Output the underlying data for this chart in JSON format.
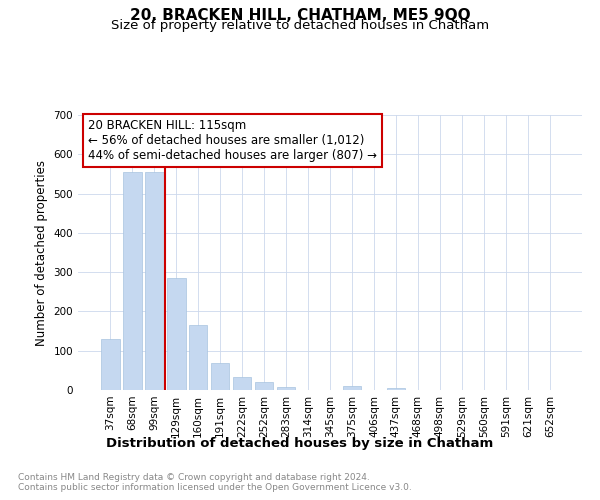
{
  "title": "20, BRACKEN HILL, CHATHAM, ME5 9QQ",
  "subtitle": "Size of property relative to detached houses in Chatham",
  "xlabel": "Distribution of detached houses by size in Chatham",
  "ylabel": "Number of detached properties",
  "categories": [
    "37sqm",
    "68sqm",
    "99sqm",
    "129sqm",
    "160sqm",
    "191sqm",
    "222sqm",
    "252sqm",
    "283sqm",
    "314sqm",
    "345sqm",
    "375sqm",
    "406sqm",
    "437sqm",
    "468sqm",
    "498sqm",
    "529sqm",
    "560sqm",
    "591sqm",
    "621sqm",
    "652sqm"
  ],
  "values": [
    130,
    555,
    555,
    285,
    165,
    70,
    33,
    20,
    8,
    0,
    0,
    10,
    0,
    5,
    0,
    0,
    0,
    0,
    0,
    0,
    0
  ],
  "bar_color": "#c5d8f0",
  "bar_edge_color": "#a8c4e0",
  "annotation_box_text": "20 BRACKEN HILL: 115sqm\n← 56% of detached houses are smaller (1,012)\n44% of semi-detached houses are larger (807) →",
  "annotation_box_color": "white",
  "annotation_box_edge_color": "#cc0000",
  "vline_color": "#cc0000",
  "vline_x": 2.5,
  "ylim": [
    0,
    700
  ],
  "yticks": [
    0,
    100,
    200,
    300,
    400,
    500,
    600,
    700
  ],
  "footnote": "Contains HM Land Registry data © Crown copyright and database right 2024.\nContains public sector information licensed under the Open Government Licence v3.0.",
  "title_fontsize": 11,
  "subtitle_fontsize": 9.5,
  "xlabel_fontsize": 9.5,
  "ylabel_fontsize": 8.5,
  "tick_fontsize": 7.5,
  "annotation_fontsize": 8.5,
  "footnote_fontsize": 6.5,
  "background_color": "#ffffff",
  "grid_color": "#ccd8ec"
}
